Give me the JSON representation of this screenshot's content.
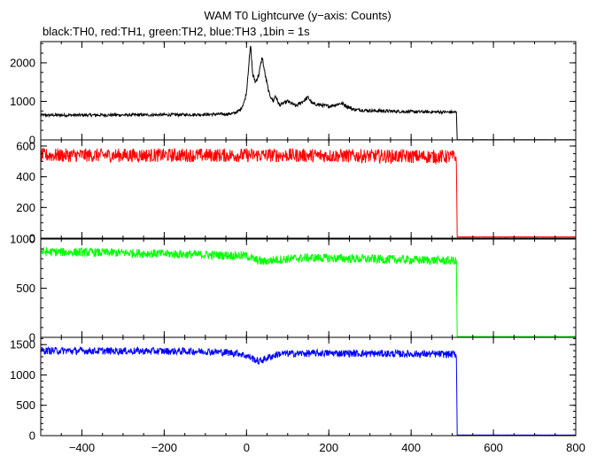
{
  "chart_data": {
    "type": "line",
    "title": "WAM T0 Lightcurve (y−axis: Counts)",
    "subtitle": "black:TH0, red:TH1, green:TH2, blue:TH3 ,1bin = 1s",
    "xlim": [
      -500,
      800
    ],
    "x_ticks": [
      -400,
      -200,
      0,
      200,
      400,
      600,
      800
    ],
    "x_tick_labels": [
      "−400",
      "−200",
      "0",
      "200",
      "400",
      "600",
      "800"
    ],
    "x_minor_step": 50,
    "grid": false,
    "panels": [
      {
        "series": "TH0",
        "color": "#000000",
        "ylim": [
          0,
          2550
        ],
        "y_ticks": [
          0,
          1000,
          2000
        ],
        "y_tick_labels": [
          "0",
          "1000",
          "2000"
        ],
        "y_minor_step": 250,
        "noise_level": 40,
        "baseline": [
          [
            -500,
            640
          ],
          [
            -200,
            650
          ],
          [
            -100,
            660
          ],
          [
            -50,
            670
          ],
          [
            -30,
            690
          ],
          [
            -15,
            780
          ],
          [
            -5,
            1000
          ],
          [
            0,
            1250
          ],
          [
            5,
            1900
          ],
          [
            10,
            2450
          ],
          [
            15,
            1700
          ],
          [
            22,
            1500
          ],
          [
            30,
            1700
          ],
          [
            38,
            2150
          ],
          [
            45,
            1700
          ],
          [
            55,
            1200
          ],
          [
            65,
            1000
          ],
          [
            70,
            1150
          ],
          [
            80,
            900
          ],
          [
            100,
            1000
          ],
          [
            120,
            880
          ],
          [
            150,
            1100
          ],
          [
            160,
            940
          ],
          [
            200,
            870
          ],
          [
            230,
            950
          ],
          [
            260,
            790
          ],
          [
            300,
            760
          ],
          [
            400,
            730
          ],
          [
            505,
            720
          ],
          [
            510,
            710
          ],
          [
            512,
            5
          ],
          [
            800,
            5
          ]
        ]
      },
      {
        "series": "TH1",
        "color": "#ff0000",
        "ylim": [
          0,
          640
        ],
        "y_ticks": [
          0,
          200,
          400,
          600
        ],
        "y_tick_labels": [
          "0",
          "200",
          "400",
          "600"
        ],
        "y_minor_step": 50,
        "noise_level": 45,
        "baseline": [
          [
            -500,
            540
          ],
          [
            0,
            540
          ],
          [
            100,
            540
          ],
          [
            505,
            530
          ],
          [
            510,
            520
          ],
          [
            512,
            8
          ],
          [
            800,
            8
          ]
        ]
      },
      {
        "series": "TH2",
        "color": "#00ff00",
        "ylim": [
          0,
          1000
        ],
        "y_ticks": [
          0,
          500,
          1000
        ],
        "y_tick_labels": [
          "0",
          "500",
          "1000"
        ],
        "y_minor_step": 100,
        "noise_level": 45,
        "baseline": [
          [
            -500,
            870
          ],
          [
            -300,
            860
          ],
          [
            0,
            830
          ],
          [
            20,
            790
          ],
          [
            40,
            770
          ],
          [
            70,
            790
          ],
          [
            150,
            810
          ],
          [
            505,
            780
          ],
          [
            510,
            770
          ],
          [
            512,
            8
          ],
          [
            800,
            8
          ]
        ]
      },
      {
        "series": "TH3",
        "color": "#0000ff",
        "ylim": [
          0,
          1620
        ],
        "y_ticks": [
          0,
          500,
          1000,
          1500
        ],
        "y_tick_labels": [
          "0",
          "500",
          "1000",
          "1500"
        ],
        "y_minor_step": 100,
        "noise_level": 60,
        "baseline": [
          [
            -500,
            1400
          ],
          [
            -100,
            1390
          ],
          [
            -20,
            1360
          ],
          [
            10,
            1290
          ],
          [
            30,
            1220
          ],
          [
            50,
            1280
          ],
          [
            80,
            1350
          ],
          [
            200,
            1360
          ],
          [
            505,
            1340
          ],
          [
            510,
            1330
          ],
          [
            512,
            10
          ],
          [
            800,
            10
          ]
        ]
      }
    ]
  }
}
